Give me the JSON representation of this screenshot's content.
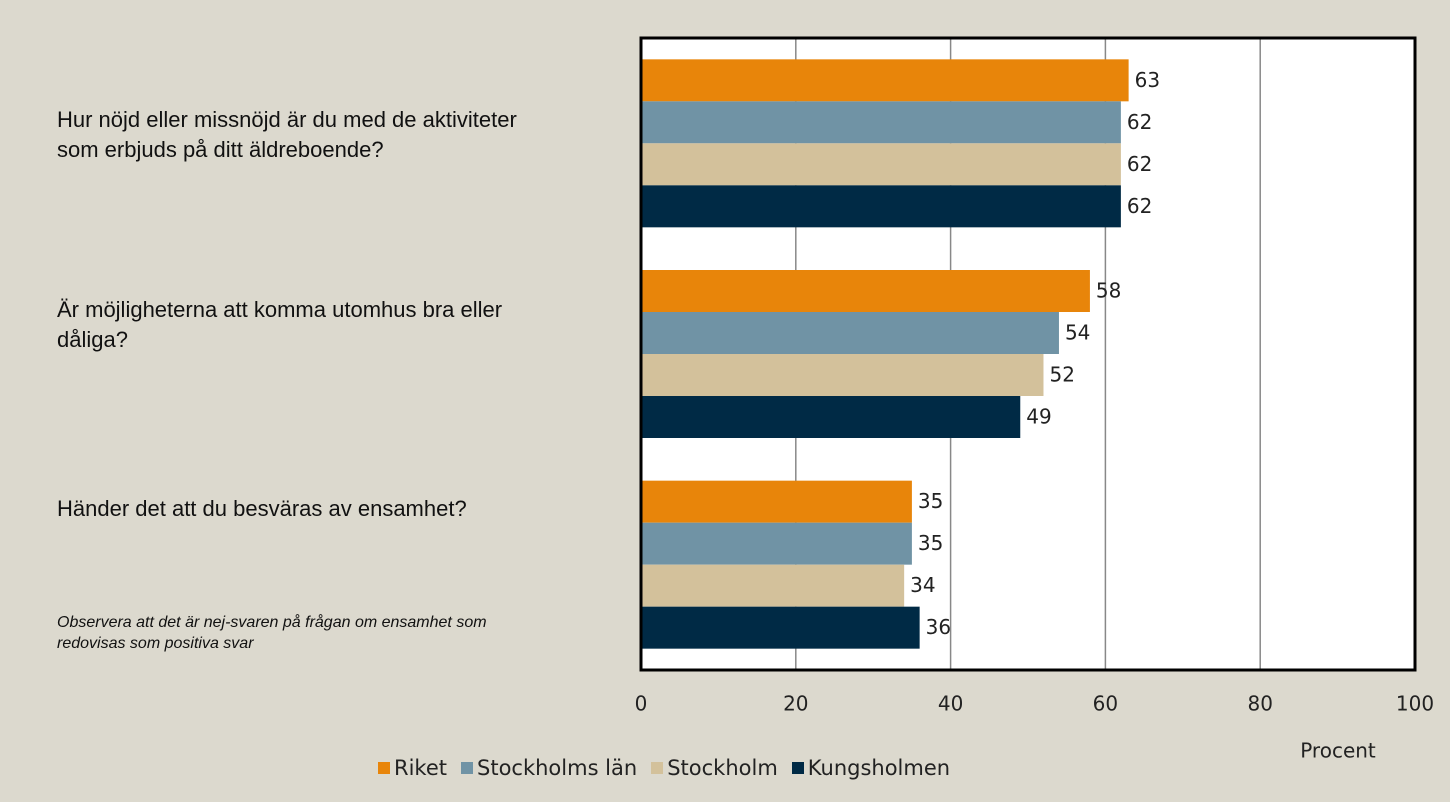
{
  "chart_data": {
    "type": "barh",
    "categories": [
      "Hur nöjd eller missnöjd är du med de aktiviteter som erbjuds på ditt äldreboende?",
      "Är möjligheterna att komma utomhus bra eller dåliga?",
      "Händer det att du besväras av ensamhet?"
    ],
    "series": [
      {
        "name": "Riket",
        "color": "#e8850a",
        "values": [
          63,
          58,
          35
        ]
      },
      {
        "name": "Stockholms län",
        "color": "#7093a5",
        "values": [
          62,
          54,
          35
        ]
      },
      {
        "name": "Stockholm",
        "color": "#d3c19b",
        "values": [
          62,
          52,
          34
        ]
      },
      {
        "name": "Kungsholmen",
        "color": "#002a45",
        "values": [
          62,
          49,
          36
        ]
      }
    ],
    "annotation": "Observera att det är nej-svaren på frågan om ensamhet som redovisas som positiva svar",
    "xlabel": "Procent",
    "xlim": [
      0,
      100
    ],
    "xticks": [
      0,
      20,
      40,
      60,
      80,
      100
    ],
    "grid": true
  }
}
